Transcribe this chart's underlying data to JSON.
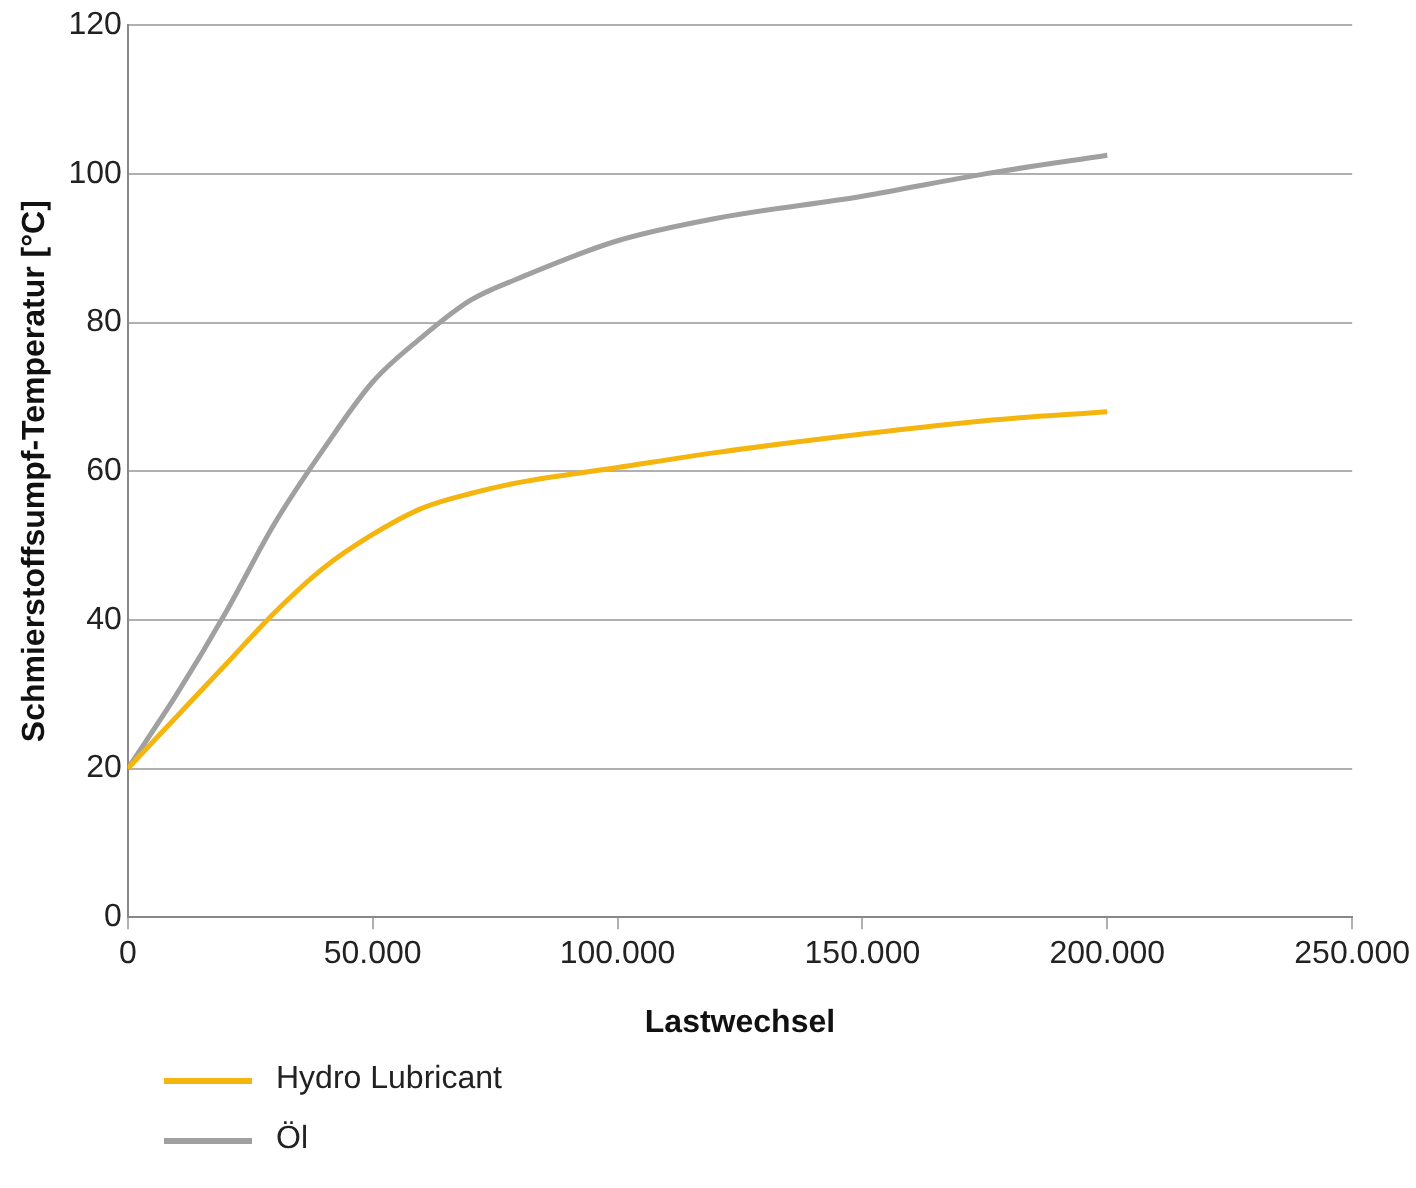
{
  "chart_data": {
    "type": "line",
    "xlabel": "Lastwechsel",
    "ylabel": "Schmierstoffsumpf-Temperatur [°C]",
    "xlim": [
      0,
      250000
    ],
    "xticks": [
      0,
      {
        "value": 50000,
        "label": "50.000"
      },
      {
        "value": 100000,
        "label": "100.000"
      },
      {
        "value": 150000,
        "label": "150.000"
      },
      {
        "value": 200000,
        "label": "200.000"
      },
      {
        "value": 250000,
        "label": "250.000"
      }
    ],
    "ylim": [
      0,
      120
    ],
    "yticks": [
      0,
      20,
      40,
      60,
      80,
      100,
      120
    ],
    "grid": "y",
    "legend": "bottom left",
    "marker": "none",
    "line_style": "solid",
    "x": [
      0,
      10000,
      20000,
      30000,
      40000,
      50000,
      60000,
      70000,
      80000,
      100000,
      120000,
      150000,
      175000,
      200000
    ],
    "series": [
      {
        "name": "Hydro Lubricant",
        "color": "#f5b50f",
        "values": [
          20,
          27,
          34,
          41,
          47,
          51.5,
          55,
          57,
          58.5,
          60.5,
          62.5,
          65,
          66.8,
          68
        ]
      },
      {
        "name": "Öl",
        "color": "#a0a0a0",
        "values": [
          20,
          30,
          41,
          53,
          63,
          72,
          78,
          83,
          86,
          91,
          94,
          97,
          100,
          102.5
        ]
      }
    ]
  }
}
